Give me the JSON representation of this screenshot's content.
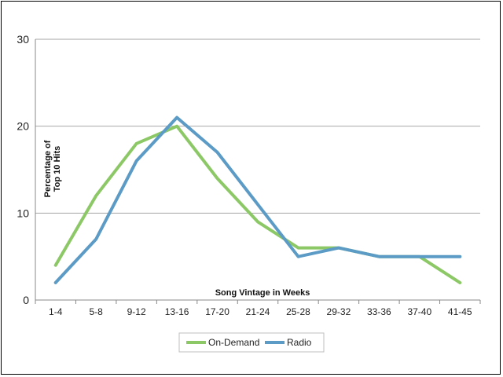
{
  "chart_data": {
    "type": "line",
    "categories": [
      "1-4",
      "5-8",
      "9-12",
      "13-16",
      "17-20",
      "21-24",
      "25-28",
      "29-32",
      "33-36",
      "37-40",
      "41-45"
    ],
    "series": [
      {
        "name": "On-Demand",
        "color": "#8cc866",
        "values": [
          4,
          12,
          18,
          20,
          14,
          9,
          6,
          6,
          5,
          5,
          2
        ]
      },
      {
        "name": "Radio",
        "color": "#5b9bc6",
        "values": [
          2,
          7,
          16,
          21,
          17,
          11,
          5,
          6,
          5,
          5,
          5
        ]
      }
    ],
    "title": "",
    "xlabel": "Song Vintage in Weeks",
    "ylabel_line1": "Percentage of",
    "ylabel_line2": "Top 10 Hits",
    "ylim": [
      0,
      30
    ],
    "yticks": [
      "0",
      "10",
      "20",
      "30"
    ],
    "grid": true,
    "legend_position": "bottom-center"
  }
}
